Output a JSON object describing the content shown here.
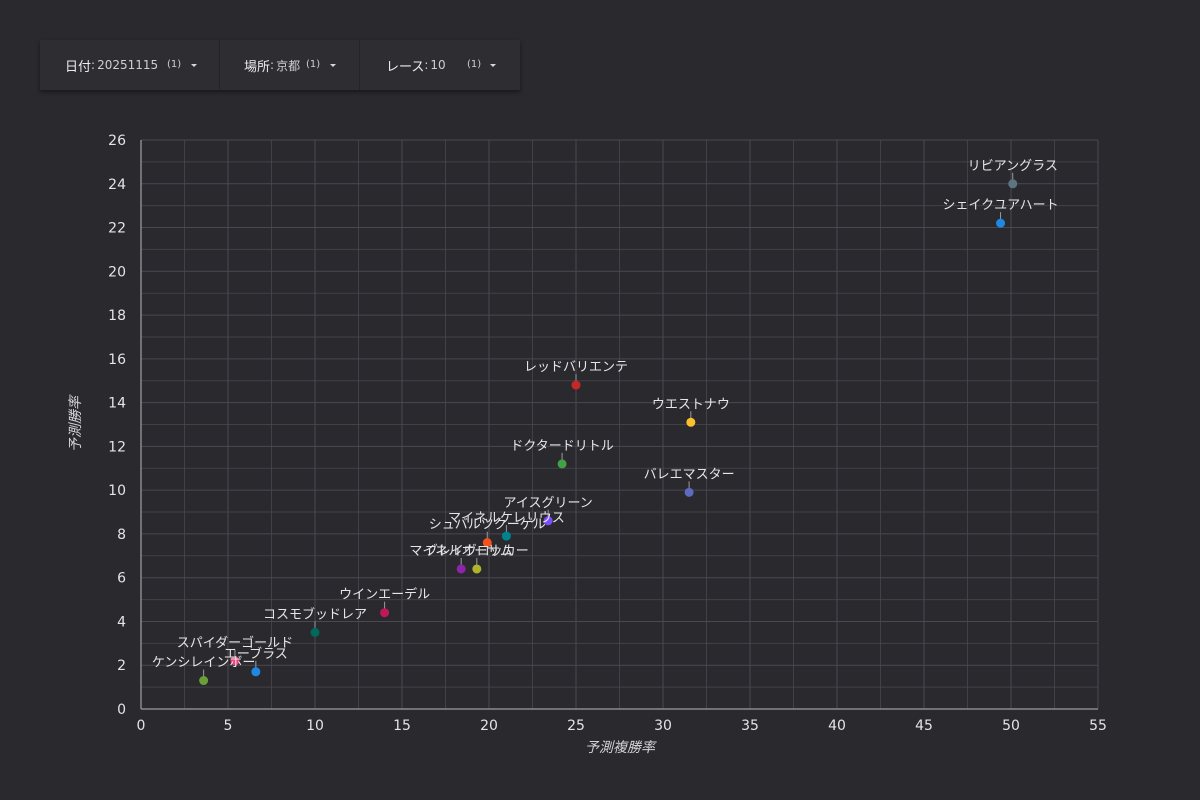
{
  "filters": [
    {
      "label": "日付",
      "value": "20251115",
      "count": "(1)"
    },
    {
      "label": "場所",
      "value": "京都",
      "count": "(1)"
    },
    {
      "label": "レース",
      "value": "10",
      "count": "(1)"
    }
  ],
  "colors": {
    "background": "#2a292e",
    "grid": "#4a4950",
    "axis": "#8a8990",
    "text": "#e4e4e6"
  },
  "chart_data": {
    "type": "scatter",
    "xlabel": "予測複勝率",
    "ylabel": "予測勝率",
    "xlim": [
      0,
      55
    ],
    "ylim": [
      0,
      26
    ],
    "xticks": [
      0,
      5,
      10,
      15,
      20,
      25,
      30,
      35,
      40,
      45,
      50,
      55
    ],
    "yticks": [
      0,
      2,
      4,
      6,
      8,
      10,
      12,
      14,
      16,
      18,
      20,
      22,
      24,
      26
    ],
    "grid": true,
    "points": [
      {
        "name": "リビアングラス",
        "x": 50.1,
        "y": 24.0,
        "color": "#5f7481"
      },
      {
        "name": "シェイクユアハート",
        "x": 49.4,
        "y": 22.2,
        "color": "#1e88e5"
      },
      {
        "name": "レッドバリエンテ",
        "x": 25.0,
        "y": 14.8,
        "color": "#c62828"
      },
      {
        "name": "ウエストナウ",
        "x": 31.6,
        "y": 13.1,
        "color": "#fbc02d"
      },
      {
        "name": "ドクタードリトル",
        "x": 24.2,
        "y": 11.2,
        "color": "#43a047"
      },
      {
        "name": "バレエマスター",
        "x": 31.5,
        "y": 9.9,
        "color": "#5c6bc0"
      },
      {
        "name": "アイスグリーン",
        "x": 23.4,
        "y": 8.6,
        "color": "#7c4dff"
      },
      {
        "name": "マイネルケレリウス",
        "x": 21.0,
        "y": 7.9,
        "color": "#00838f"
      },
      {
        "name": "シュバルツクーゲル",
        "x": 19.9,
        "y": 7.6,
        "color": "#f4511e"
      },
      {
        "name": "マイネルオーサム",
        "x": 18.4,
        "y": 6.4,
        "color": "#8e24aa"
      },
      {
        "name": "ブレイヴロッカー",
        "x": 19.3,
        "y": 6.4,
        "color": "#afb42b"
      },
      {
        "name": "ウインエーデル",
        "x": 14.0,
        "y": 4.4,
        "color": "#c2185b"
      },
      {
        "name": "コスモブッドレア",
        "x": 10.0,
        "y": 3.5,
        "color": "#00695c"
      },
      {
        "name": "スパイダーゴールド",
        "x": 5.4,
        "y": 2.2,
        "color": "#ec407a"
      },
      {
        "name": "エーブラス",
        "x": 6.6,
        "y": 1.7,
        "color": "#1e88e5"
      },
      {
        "name": "ケンシレインボー",
        "x": 3.6,
        "y": 1.3,
        "color": "#689f38"
      }
    ]
  }
}
